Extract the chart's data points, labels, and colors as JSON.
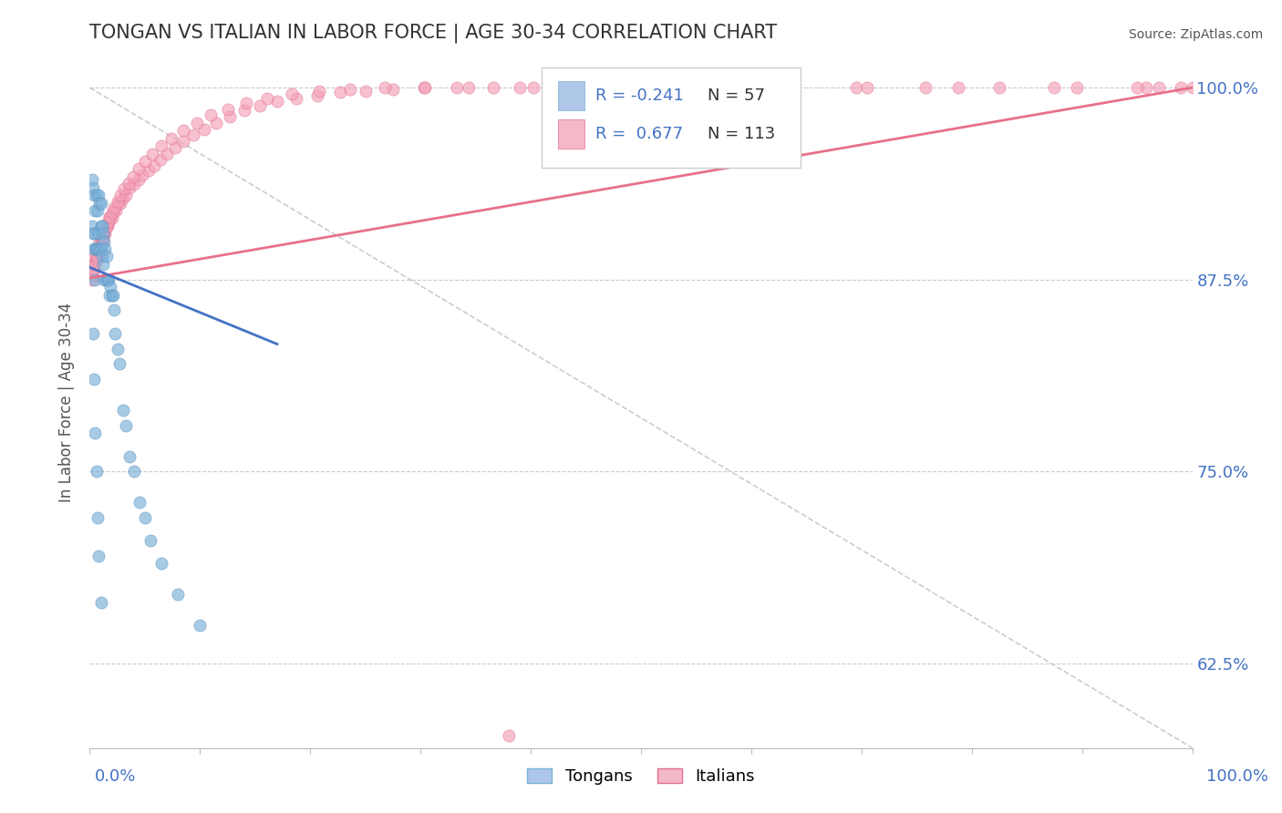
{
  "title": "TONGAN VS ITALIAN IN LABOR FORCE | AGE 30-34 CORRELATION CHART",
  "source_text": "Source: ZipAtlas.com",
  "ylabel": "In Labor Force | Age 30-34",
  "yticks": [
    0.625,
    0.75,
    0.875,
    1.0
  ],
  "ytick_labels": [
    "62.5%",
    "75.0%",
    "87.5%",
    "100.0%"
  ],
  "xlim": [
    0.0,
    1.0
  ],
  "ylim": [
    0.57,
    1.02
  ],
  "corr_box": {
    "blue_R": "-0.241",
    "blue_N": "57",
    "pink_R": "0.677",
    "pink_N": "113"
  },
  "blue_scatter": {
    "color": "#7ab0d8",
    "edge_color": "#5a90c0",
    "alpha": 0.65,
    "size": 90,
    "x": [
      0.002,
      0.002,
      0.003,
      0.003,
      0.004,
      0.004,
      0.005,
      0.005,
      0.005,
      0.005,
      0.006,
      0.006,
      0.007,
      0.007,
      0.008,
      0.008,
      0.009,
      0.009,
      0.01,
      0.01,
      0.01,
      0.011,
      0.011,
      0.012,
      0.012,
      0.013,
      0.013,
      0.014,
      0.015,
      0.015,
      0.016,
      0.017,
      0.018,
      0.019,
      0.02,
      0.021,
      0.022,
      0.023,
      0.025,
      0.027,
      0.03,
      0.033,
      0.036,
      0.04,
      0.045,
      0.05,
      0.055,
      0.065,
      0.08,
      0.1,
      0.003,
      0.004,
      0.005,
      0.006,
      0.007,
      0.008,
      0.01
    ],
    "y": [
      0.94,
      0.91,
      0.935,
      0.905,
      0.93,
      0.895,
      0.92,
      0.905,
      0.895,
      0.875,
      0.93,
      0.895,
      0.92,
      0.895,
      0.93,
      0.905,
      0.925,
      0.895,
      0.925,
      0.91,
      0.895,
      0.91,
      0.89,
      0.905,
      0.885,
      0.9,
      0.875,
      0.895,
      0.89,
      0.875,
      0.875,
      0.875,
      0.865,
      0.87,
      0.865,
      0.865,
      0.855,
      0.84,
      0.83,
      0.82,
      0.79,
      0.78,
      0.76,
      0.75,
      0.73,
      0.72,
      0.705,
      0.69,
      0.67,
      0.65,
      0.84,
      0.81,
      0.775,
      0.75,
      0.72,
      0.695,
      0.665
    ]
  },
  "pink_scatter": {
    "color": "#f4a0b8",
    "edge_color": "#e07090",
    "alpha": 0.65,
    "size": 90,
    "x": [
      0.002,
      0.003,
      0.004,
      0.005,
      0.006,
      0.007,
      0.008,
      0.009,
      0.01,
      0.011,
      0.012,
      0.013,
      0.014,
      0.015,
      0.016,
      0.017,
      0.018,
      0.019,
      0.02,
      0.022,
      0.024,
      0.026,
      0.028,
      0.03,
      0.033,
      0.036,
      0.04,
      0.044,
      0.048,
      0.053,
      0.058,
      0.064,
      0.07,
      0.077,
      0.085,
      0.094,
      0.104,
      0.115,
      0.127,
      0.14,
      0.154,
      0.17,
      0.187,
      0.206,
      0.227,
      0.25,
      0.275,
      0.303,
      0.333,
      0.366,
      0.402,
      0.441,
      0.484,
      0.531,
      0.581,
      0.636,
      0.695,
      0.758,
      0.825,
      0.895,
      0.002,
      0.003,
      0.004,
      0.005,
      0.006,
      0.007,
      0.008,
      0.009,
      0.01,
      0.011,
      0.012,
      0.013,
      0.015,
      0.016,
      0.018,
      0.02,
      0.022,
      0.025,
      0.028,
      0.031,
      0.035,
      0.039,
      0.044,
      0.05,
      0.057,
      0.065,
      0.074,
      0.085,
      0.097,
      0.11,
      0.125,
      0.142,
      0.161,
      0.183,
      0.208,
      0.236,
      0.268,
      0.304,
      0.344,
      0.39,
      0.44,
      0.497,
      0.56,
      0.629,
      0.705,
      0.788,
      0.875,
      0.958,
      0.38,
      0.97,
      0.99,
      1.0,
      0.95
    ],
    "y": [
      0.88,
      0.885,
      0.885,
      0.89,
      0.89,
      0.895,
      0.895,
      0.9,
      0.9,
      0.9,
      0.905,
      0.905,
      0.905,
      0.91,
      0.91,
      0.912,
      0.915,
      0.915,
      0.915,
      0.92,
      0.92,
      0.925,
      0.925,
      0.928,
      0.93,
      0.935,
      0.937,
      0.94,
      0.943,
      0.946,
      0.949,
      0.953,
      0.957,
      0.961,
      0.965,
      0.969,
      0.973,
      0.977,
      0.981,
      0.985,
      0.988,
      0.991,
      0.993,
      0.995,
      0.997,
      0.998,
      0.999,
      1.0,
      1.0,
      1.0,
      1.0,
      1.0,
      1.0,
      1.0,
      1.0,
      1.0,
      1.0,
      1.0,
      1.0,
      1.0,
      0.875,
      0.878,
      0.882,
      0.885,
      0.888,
      0.89,
      0.893,
      0.895,
      0.898,
      0.9,
      0.903,
      0.906,
      0.91,
      0.912,
      0.916,
      0.919,
      0.922,
      0.926,
      0.93,
      0.934,
      0.938,
      0.942,
      0.947,
      0.952,
      0.957,
      0.962,
      0.967,
      0.972,
      0.977,
      0.982,
      0.986,
      0.99,
      0.993,
      0.996,
      0.998,
      0.999,
      1.0,
      1.0,
      1.0,
      1.0,
      1.0,
      1.0,
      1.0,
      1.0,
      1.0,
      1.0,
      1.0,
      1.0,
      0.578,
      1.0,
      1.0,
      1.0,
      1.0
    ]
  },
  "blue_trend": {
    "x": [
      0.0,
      0.17
    ],
    "y": [
      0.883,
      0.833
    ],
    "color": "#4472c4",
    "linewidth": 2.0
  },
  "pink_trend": {
    "x": [
      0.0,
      1.0
    ],
    "y": [
      0.876,
      1.0
    ],
    "color": "#e8708a",
    "linewidth": 2.0
  },
  "diagonal_dash": {
    "x": [
      0.0,
      1.0
    ],
    "y": [
      1.0,
      0.57
    ],
    "color": "#cccccc",
    "linewidth": 1.2,
    "linestyle": "--"
  },
  "background_color": "#ffffff"
}
